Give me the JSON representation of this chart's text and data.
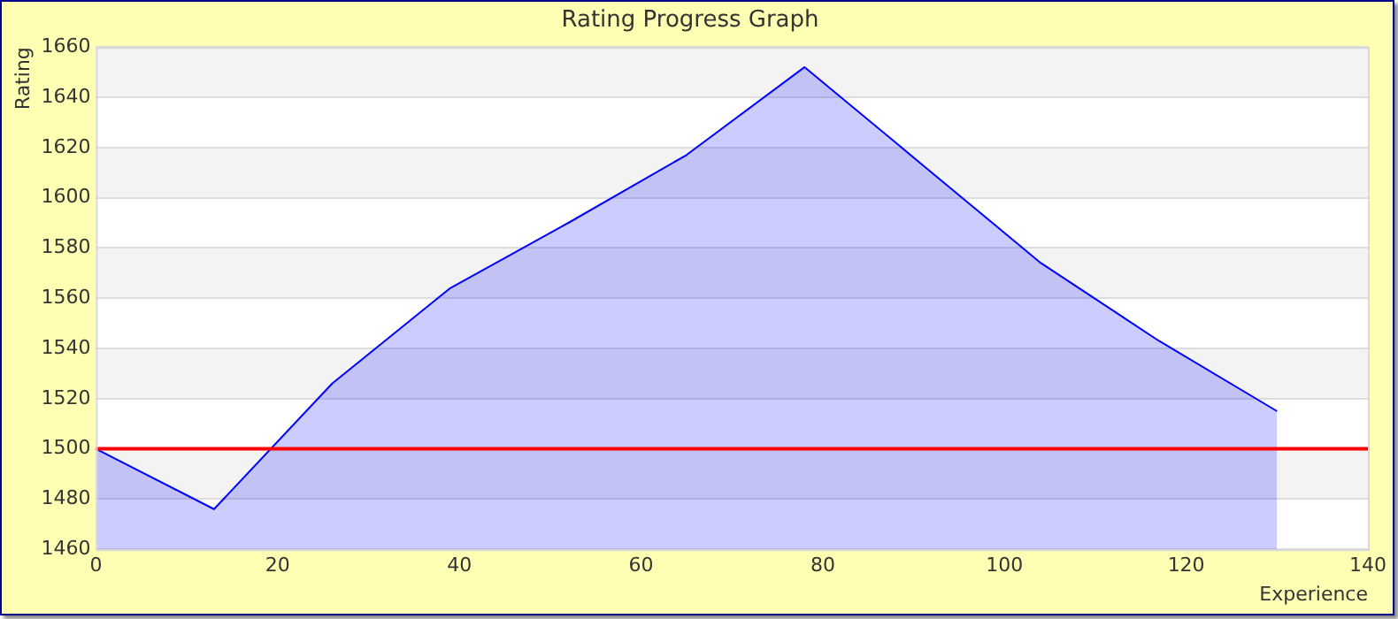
{
  "chart_data": {
    "type": "area",
    "title": "Rating Progress Graph",
    "xlabel": "Experience",
    "ylabel": "Rating",
    "x": [
      0,
      13,
      26,
      39,
      52,
      65,
      78,
      91,
      104,
      117,
      130
    ],
    "series": [
      {
        "color": "#0000ff",
        "values": [
          1500,
          1476,
          1526,
          1564,
          1590,
          1617,
          1652,
          1613,
          1574,
          1543,
          1515
        ]
      }
    ],
    "xlim": [
      0,
      140
    ],
    "xticks": [
      0,
      20,
      40,
      60,
      80,
      100,
      120,
      140
    ],
    "ylim": [
      1460,
      1660
    ],
    "yticks": [
      1460,
      1480,
      1500,
      1520,
      1540,
      1560,
      1580,
      1600,
      1620,
      1640,
      1660
    ],
    "ref_lines": [
      {
        "axis": "y",
        "value": 1500,
        "color": "#ff0000"
      }
    ],
    "grid": "y",
    "legend": false,
    "marker": "none",
    "line_style": "solid"
  }
}
